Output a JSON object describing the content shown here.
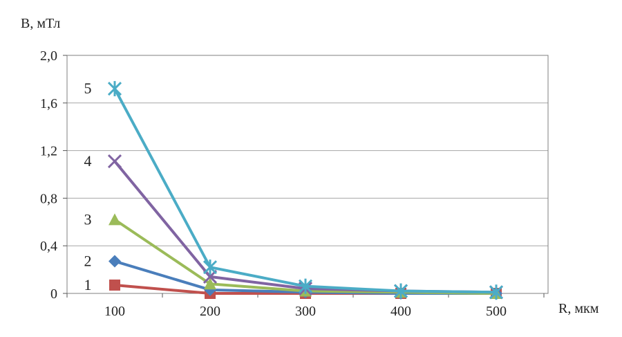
{
  "chart_data": {
    "type": "line",
    "ylabel": "B, мТл",
    "xlabel": "R, мкм",
    "x": [
      100,
      200,
      300,
      400,
      500
    ],
    "x_ticks": [
      "100",
      "200",
      "300",
      "400",
      "500"
    ],
    "ylim": [
      0,
      2.0
    ],
    "y_ticks": [
      {
        "value": 0,
        "label": "0"
      },
      {
        "value": 0.4,
        "label": "0,4"
      },
      {
        "value": 0.8,
        "label": "0,8"
      },
      {
        "value": 1.2,
        "label": "1,2"
      },
      {
        "value": 1.6,
        "label": "1,6"
      },
      {
        "value": 2.0,
        "label": "2,0"
      }
    ],
    "grid": true,
    "series": [
      {
        "label": "1",
        "marker": "square",
        "color": "#c0504d",
        "values": [
          0.07,
          0.0,
          0.0,
          0.0,
          0.0
        ]
      },
      {
        "label": "2",
        "marker": "diamond",
        "color": "#4a7ebb",
        "values": [
          0.27,
          0.03,
          0.01,
          0.0,
          0.0
        ]
      },
      {
        "label": "3",
        "marker": "triangle",
        "color": "#9bbb59",
        "values": [
          0.62,
          0.08,
          0.02,
          0.01,
          0.0
        ]
      },
      {
        "label": "4",
        "marker": "x",
        "color": "#8064a2",
        "values": [
          1.11,
          0.14,
          0.04,
          0.02,
          0.01
        ]
      },
      {
        "label": "5",
        "marker": "star",
        "color": "#4bacc6",
        "values": [
          1.72,
          0.22,
          0.06,
          0.02,
          0.01
        ]
      }
    ]
  }
}
